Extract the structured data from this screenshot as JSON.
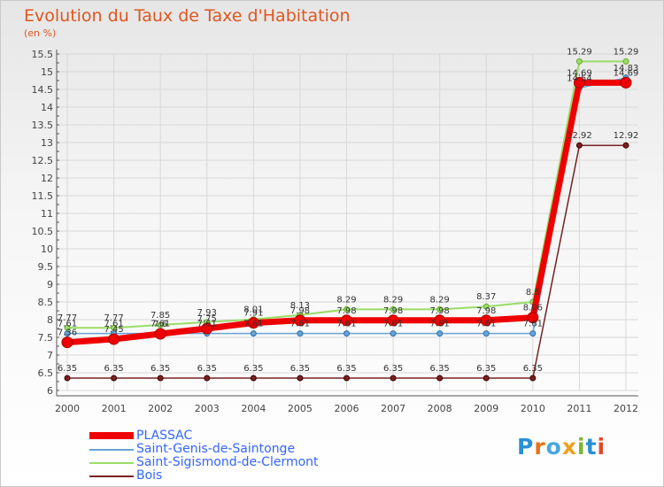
{
  "chart_data": {
    "type": "line",
    "title": "Evolution du Taux de Taxe d'Habitation",
    "subtitle": "(en %)",
    "xlabel": "",
    "ylabel": "",
    "ylim": [
      6,
      15.5
    ],
    "y_ticks": [
      "6",
      "6.5",
      "7",
      "7.5",
      "8",
      "8.5",
      "9",
      "9.5",
      "10",
      "10.5",
      "11",
      "11.5",
      "12",
      "12.5",
      "13",
      "13.5",
      "14",
      "14.5",
      "15",
      "15.5"
    ],
    "categories": [
      "2000",
      "2001",
      "2002",
      "2003",
      "2004",
      "2005",
      "2006",
      "2007",
      "2008",
      "2009",
      "2010",
      "2011",
      "2012"
    ],
    "series": [
      {
        "name": "PLASSAC",
        "color": "#ee0000",
        "values": [
          7.36,
          7.45,
          7.6,
          7.75,
          7.91,
          7.98,
          7.98,
          7.98,
          7.98,
          7.98,
          8.06,
          14.69,
          14.69
        ],
        "labels": [
          "7.36",
          "7.45",
          "7.6",
          "7.75",
          "7.91",
          "7.98",
          "7.98",
          "7.98",
          "7.98",
          "7.98",
          "8.06",
          "14.69",
          "14.69"
        ]
      },
      {
        "name": "Saint-Genis-de-Saintonge",
        "color": "#6aa3d5",
        "values": [
          7.61,
          7.61,
          7.61,
          7.61,
          7.61,
          7.61,
          7.61,
          7.61,
          7.61,
          7.61,
          7.61,
          14.54,
          14.83
        ],
        "labels": [
          "7.61",
          "7.61",
          "7.61",
          "7.61",
          "7.61",
          "7.61",
          "7.61",
          "7.61",
          "7.61",
          "7.61",
          "7.61",
          "14.54",
          "14.83"
        ]
      },
      {
        "name": "Saint-Sigismond-de-Clermont",
        "color": "#99dd66",
        "values": [
          7.77,
          7.77,
          7.85,
          7.93,
          8.01,
          8.13,
          8.29,
          8.29,
          8.29,
          8.37,
          8.5,
          15.29,
          15.29
        ],
        "labels": [
          "7.77",
          "7.77",
          "7.85",
          "7.93",
          "8.01",
          "8.13",
          "8.29",
          "8.29",
          "8.29",
          "8.37",
          "8.5",
          "15.29",
          "15.29"
        ]
      },
      {
        "name": "Bois",
        "color": "#772222",
        "values": [
          6.35,
          6.35,
          6.35,
          6.35,
          6.35,
          6.35,
          6.35,
          6.35,
          6.35,
          6.35,
          6.35,
          12.92,
          12.92
        ],
        "labels": [
          "6.35",
          "6.35",
          "6.35",
          "6.35",
          "6.35",
          "6.35",
          "6.35",
          "6.35",
          "6.35",
          "6.35",
          "6.35",
          "12.92",
          "12.92"
        ]
      }
    ],
    "legend_position": "bottom-left"
  },
  "logo": {
    "parts": [
      "P",
      "r",
      "o",
      "x",
      "i",
      "t",
      "i"
    ]
  }
}
